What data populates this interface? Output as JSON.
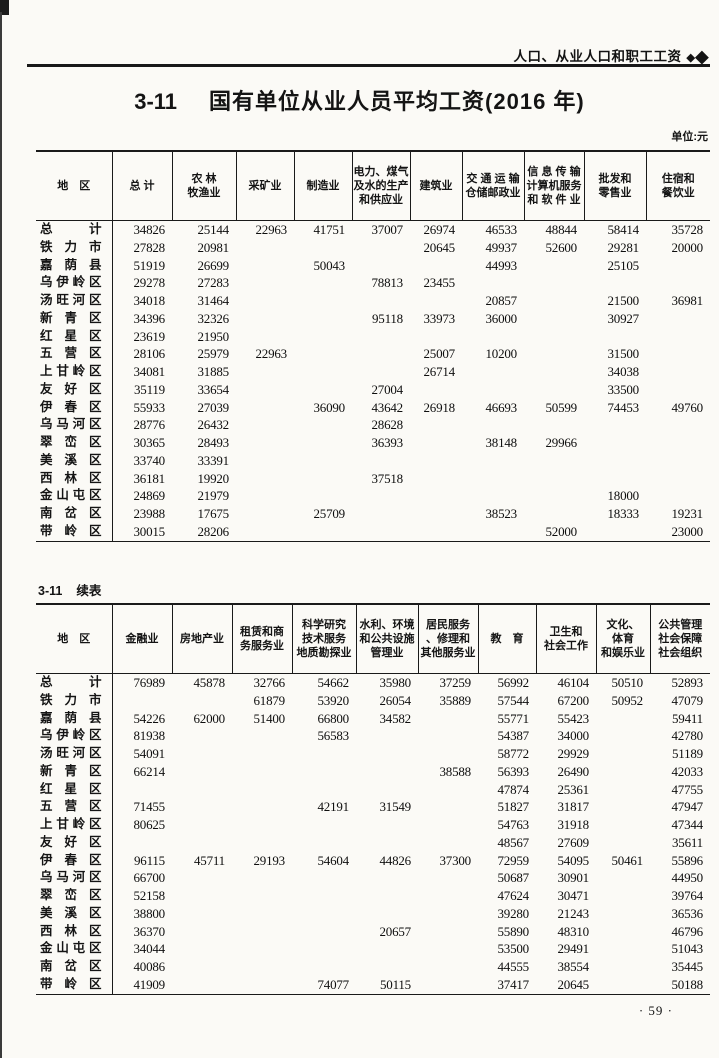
{
  "page": {
    "header_right": "人口、从业人口和职工工资",
    "diamond1": "◆",
    "diamond2": "◆",
    "table_number": "3-11",
    "title": "国有单位从业人员平均工资(2016 年)",
    "unit_label": "单位:元",
    "continued_number": "3-11",
    "continued_text": "续表",
    "page_number": "· 59 ·"
  },
  "colors": {
    "ink": "#141414",
    "paper": "#fbfaf6"
  },
  "table1": {
    "header": {
      "region": "地　区",
      "cols": [
        [
          "总 计"
        ],
        [
          "农 林",
          "牧渔业"
        ],
        [
          "采矿业"
        ],
        [
          "制造业"
        ],
        [
          "电力、煤气",
          "及水的生产",
          "和供应业"
        ],
        [
          "建筑业"
        ],
        [
          "交 通 运 输",
          "仓储邮政业"
        ],
        [
          "信 息 传 输",
          "计算机服务",
          "和 软 件 业"
        ],
        [
          "批发和",
          "零售业"
        ],
        [
          "住宿和",
          "餐饮业"
        ]
      ]
    },
    "rows": [
      {
        "region": "总计",
        "values": [
          "34826",
          "25144",
          "22963",
          "41751",
          "37007",
          "26974",
          "46533",
          "48844",
          "58414",
          "35728"
        ]
      },
      {
        "region": "铁力市",
        "values": [
          "27828",
          "20981",
          "",
          "",
          "",
          "20645",
          "49937",
          "52600",
          "29281",
          "20000"
        ]
      },
      {
        "region": "嘉荫县",
        "values": [
          "51919",
          "26699",
          "",
          "50043",
          "",
          "",
          "44993",
          "",
          "25105",
          ""
        ]
      },
      {
        "region": "乌伊岭区",
        "values": [
          "29278",
          "27283",
          "",
          "",
          "78813",
          "23455",
          "",
          "",
          "",
          ""
        ]
      },
      {
        "region": "汤旺河区",
        "values": [
          "34018",
          "31464",
          "",
          "",
          "",
          "",
          "20857",
          "",
          "21500",
          "36981"
        ]
      },
      {
        "region": "新青区",
        "values": [
          "34396",
          "32326",
          "",
          "",
          "95118",
          "33973",
          "36000",
          "",
          "30927",
          ""
        ]
      },
      {
        "region": "红星区",
        "values": [
          "23619",
          "21950",
          "",
          "",
          "",
          "",
          "",
          "",
          "",
          ""
        ]
      },
      {
        "region": "五营区",
        "values": [
          "28106",
          "25979",
          "22963",
          "",
          "",
          "25007",
          "10200",
          "",
          "31500",
          ""
        ]
      },
      {
        "region": "上甘岭区",
        "values": [
          "34081",
          "31885",
          "",
          "",
          "",
          "26714",
          "",
          "",
          "34038",
          ""
        ]
      },
      {
        "region": "友好区",
        "values": [
          "35119",
          "33654",
          "",
          "",
          "27004",
          "",
          "",
          "",
          "33500",
          ""
        ]
      },
      {
        "region": "伊春区",
        "values": [
          "55933",
          "27039",
          "",
          "36090",
          "43642",
          "26918",
          "46693",
          "50599",
          "74453",
          "49760"
        ]
      },
      {
        "region": "乌马河区",
        "values": [
          "28776",
          "26432",
          "",
          "",
          "28628",
          "",
          "",
          "",
          "",
          ""
        ]
      },
      {
        "region": "翠峦区",
        "values": [
          "30365",
          "28493",
          "",
          "",
          "36393",
          "",
          "38148",
          "29966",
          "",
          ""
        ]
      },
      {
        "region": "美溪区",
        "values": [
          "33740",
          "33391",
          "",
          "",
          "",
          "",
          "",
          "",
          "",
          ""
        ]
      },
      {
        "region": "西林区",
        "values": [
          "36181",
          "19920",
          "",
          "",
          "37518",
          "",
          "",
          "",
          "",
          ""
        ]
      },
      {
        "region": "金山屯区",
        "values": [
          "24869",
          "21979",
          "",
          "",
          "",
          "",
          "",
          "",
          "18000",
          ""
        ]
      },
      {
        "region": "南岔区",
        "values": [
          "23988",
          "17675",
          "",
          "25709",
          "",
          "",
          "38523",
          "",
          "18333",
          "19231"
        ]
      },
      {
        "region": "带岭区",
        "values": [
          "30015",
          "28206",
          "",
          "",
          "",
          "",
          "",
          "52000",
          "",
          "23000"
        ]
      }
    ]
  },
  "table2": {
    "header": {
      "region": "地　区",
      "cols": [
        [
          "金融业"
        ],
        [
          "房地产业"
        ],
        [
          "租赁和商",
          "务服务业"
        ],
        [
          "科学研究",
          "技术服务",
          "地质勘探业"
        ],
        [
          "水利、环境",
          "和公共设施",
          "管理业"
        ],
        [
          "居民服务",
          "、修理和",
          "其他服务业"
        ],
        [
          "教　育"
        ],
        [
          "卫生和",
          "社会工作"
        ],
        [
          "文化、",
          "体育",
          "和娱乐业"
        ],
        [
          "公共管理",
          "社会保障",
          "社会组织"
        ]
      ]
    },
    "rows": [
      {
        "region": "总计",
        "values": [
          "76989",
          "45878",
          "32766",
          "54662",
          "35980",
          "37259",
          "56992",
          "46104",
          "50510",
          "52893"
        ]
      },
      {
        "region": "铁力市",
        "values": [
          "",
          "",
          "61879",
          "53920",
          "26054",
          "35889",
          "57544",
          "67200",
          "50952",
          "47079"
        ]
      },
      {
        "region": "嘉荫县",
        "values": [
          "54226",
          "62000",
          "51400",
          "66800",
          "34582",
          "",
          "55771",
          "55423",
          "",
          "59411"
        ]
      },
      {
        "region": "乌伊岭区",
        "values": [
          "81938",
          "",
          "",
          "56583",
          "",
          "",
          "54387",
          "34000",
          "",
          "42780"
        ]
      },
      {
        "region": "汤旺河区",
        "values": [
          "54091",
          "",
          "",
          "",
          "",
          "",
          "58772",
          "29929",
          "",
          "51189"
        ]
      },
      {
        "region": "新青区",
        "values": [
          "66214",
          "",
          "",
          "",
          "",
          "38588",
          "56393",
          "26490",
          "",
          "42033"
        ]
      },
      {
        "region": "红星区",
        "values": [
          "",
          "",
          "",
          "",
          "",
          "",
          "47874",
          "25361",
          "",
          "47755"
        ]
      },
      {
        "region": "五营区",
        "values": [
          "71455",
          "",
          "",
          "42191",
          "31549",
          "",
          "51827",
          "31817",
          "",
          "47947"
        ]
      },
      {
        "region": "上甘岭区",
        "values": [
          "80625",
          "",
          "",
          "",
          "",
          "",
          "54763",
          "31918",
          "",
          "47344"
        ]
      },
      {
        "region": "友好区",
        "values": [
          "",
          "",
          "",
          "",
          "",
          "",
          "48567",
          "27609",
          "",
          "35611"
        ]
      },
      {
        "region": "伊春区",
        "values": [
          "96115",
          "45711",
          "29193",
          "54604",
          "44826",
          "37300",
          "72959",
          "54095",
          "50461",
          "55896"
        ]
      },
      {
        "region": "乌马河区",
        "values": [
          "66700",
          "",
          "",
          "",
          "",
          "",
          "50687",
          "30901",
          "",
          "44950"
        ]
      },
      {
        "region": "翠峦区",
        "values": [
          "52158",
          "",
          "",
          "",
          "",
          "",
          "47624",
          "30471",
          "",
          "39764"
        ]
      },
      {
        "region": "美溪区",
        "values": [
          "38800",
          "",
          "",
          "",
          "",
          "",
          "39280",
          "21243",
          "",
          "36536"
        ]
      },
      {
        "region": "西林区",
        "values": [
          "36370",
          "",
          "",
          "",
          "20657",
          "",
          "55890",
          "48310",
          "",
          "46796"
        ]
      },
      {
        "region": "金山屯区",
        "values": [
          "34044",
          "",
          "",
          "",
          "",
          "",
          "53500",
          "29491",
          "",
          "51043"
        ]
      },
      {
        "region": "南岔区",
        "values": [
          "40086",
          "",
          "",
          "",
          "",
          "",
          "44555",
          "38554",
          "",
          "35445"
        ]
      },
      {
        "region": "带岭区",
        "values": [
          "41909",
          "",
          "",
          "74077",
          "50115",
          "",
          "37417",
          "20645",
          "",
          "50188"
        ]
      }
    ]
  }
}
